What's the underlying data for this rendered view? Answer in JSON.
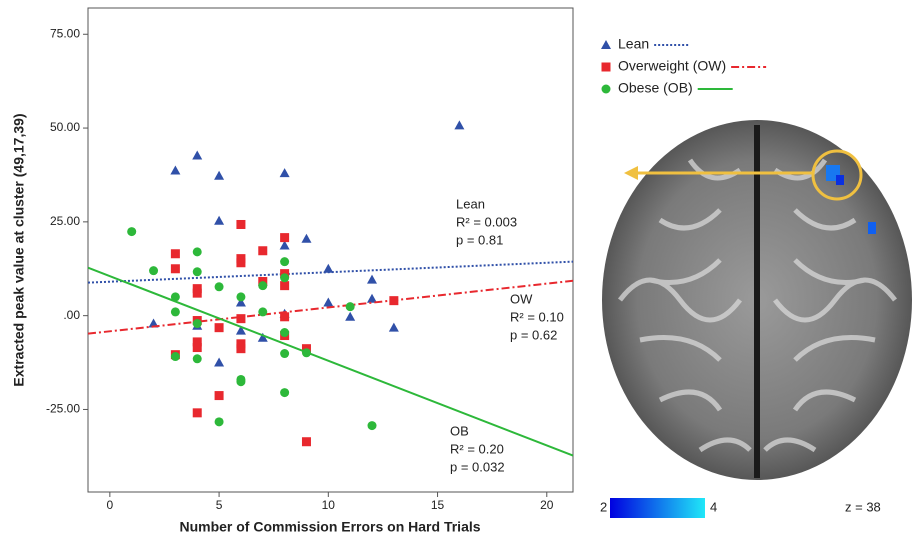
{
  "chart_data": {
    "type": "scatter",
    "x_label": "Number of Commission Errors on Hard Trials",
    "y_label": "Extracted peak value at cluster (49,17,39)",
    "xlim": [
      -1,
      21.2
    ],
    "ylim": [
      -47,
      82
    ],
    "xticks": [
      0,
      5,
      10,
      15,
      20
    ],
    "yticks": [
      {
        "value": 75,
        "label": "75.00"
      },
      {
        "value": 50,
        "label": "50.00"
      },
      {
        "value": 25,
        "label": "25.00"
      },
      {
        "value": 0,
        "label": ".00"
      },
      {
        "value": -25,
        "label": "-25.00"
      }
    ],
    "series": [
      {
        "name": "Lean",
        "color": "#3050a8",
        "marker": "triangle",
        "dash": "dotted",
        "x": [
          2,
          3,
          4,
          4,
          5,
          5,
          5,
          6,
          6,
          7,
          8,
          8,
          8,
          9,
          10,
          10,
          11,
          12,
          12,
          13,
          16
        ],
        "values": [
          -2.1,
          38.7,
          42.7,
          -2.7,
          37.3,
          25.3,
          -12.5,
          3.5,
          -4,
          -5.9,
          38,
          18.7,
          0.5,
          20.5,
          12.5,
          3.5,
          -0.3,
          9.6,
          4.5,
          -3.2,
          50.7
        ],
        "fit": {
          "x": [
            -1,
            21.2
          ],
          "values": [
            8.8,
            14.4
          ]
        },
        "annotation": [
          "Lean",
          "R² = 0.003",
          "p = 0.81"
        ]
      },
      {
        "name": "Overweight (OW)",
        "color": "#e8282e",
        "marker": "square",
        "dash": "dashdot",
        "x": [
          3,
          3,
          3,
          4,
          4,
          4,
          4,
          4,
          4,
          5,
          5,
          6,
          6,
          6,
          6,
          6,
          6,
          7,
          7,
          8,
          8,
          8,
          8,
          8,
          9,
          9,
          13
        ],
        "values": [
          16.5,
          12.5,
          -10.4,
          7.2,
          6,
          -1.3,
          -7,
          -8.5,
          -25.9,
          -3.2,
          -21.3,
          24.3,
          15.2,
          14.1,
          -0.8,
          -7.5,
          -8.8,
          17.3,
          9.1,
          20.8,
          11.2,
          8,
          -0.3,
          -5.3,
          -8.8,
          -33.6,
          4
        ],
        "fit": {
          "x": [
            -1,
            21.2
          ],
          "values": [
            -4.8,
            9.3
          ]
        },
        "annotation": [
          "OW",
          "R² = 0.10",
          "p = 0.62"
        ]
      },
      {
        "name": "Obese (OB)",
        "color": "#2db83a",
        "marker": "circle",
        "dash": "solid",
        "x": [
          1,
          2,
          3,
          3,
          3,
          4,
          4,
          4,
          4,
          5,
          5,
          6,
          6,
          6,
          7,
          7,
          8,
          8,
          8,
          8,
          8,
          9,
          11,
          12
        ],
        "values": [
          22.4,
          12,
          5,
          1,
          -10.9,
          17,
          11.7,
          -2.1,
          -11.5,
          7.7,
          -28.3,
          5,
          -17,
          -17.6,
          8,
          1,
          14.4,
          10.1,
          -4.5,
          -10.1,
          -20.5,
          -9.9,
          2.4,
          -29.3
        ],
        "fit": {
          "x": [
            -1,
            21.2
          ],
          "values": [
            12.8,
            -37.3
          ]
        },
        "annotation": [
          "OB",
          "R² = 0.20",
          "p = 0.032"
        ]
      }
    ],
    "colorbar": {
      "min": 2,
      "max": 4
    },
    "slice_label": "z = 38"
  }
}
